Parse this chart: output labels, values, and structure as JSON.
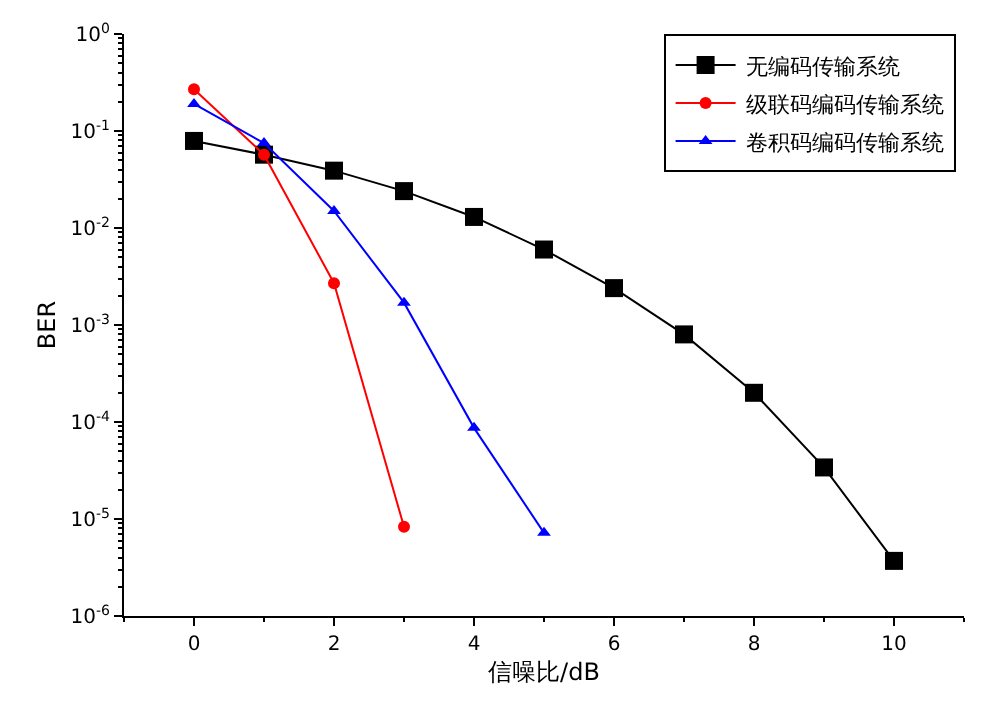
{
  "chart_data": {
    "type": "line",
    "xlabel": "信噪比/dB",
    "ylabel": "BER",
    "log": "y",
    "x": [
      0,
      1,
      2,
      3,
      4,
      5,
      6,
      7,
      8,
      9,
      10
    ],
    "xlim": [
      -1,
      11
    ],
    "xticks": [
      0,
      2,
      4,
      6,
      8,
      10
    ],
    "ylim": [
      1e-06,
      1
    ],
    "yticks": [
      {
        "value": 1,
        "label": "10$^{0}$"
      },
      {
        "value": 0.1,
        "label": "10$^{-1}$"
      },
      {
        "value": 0.01,
        "label": "10$^{-2}$"
      },
      {
        "value": 0.001,
        "label": "10$^{-3}$"
      },
      {
        "value": 0.0001,
        "label": "10$^{-4}$"
      },
      {
        "value": 1e-05,
        "label": "10$^{-5}$"
      },
      {
        "value": 1e-06,
        "label": "10$^{-6}$"
      }
    ],
    "legend": "top right",
    "series": [
      {
        "name": "无编码传输系统",
        "color": "#000000",
        "marker": "square",
        "values": [
          0.079,
          0.057,
          0.039,
          0.024,
          0.013,
          0.006,
          0.0024,
          0.0008,
          0.0002,
          3.4e-05,
          3.7e-06
        ]
      },
      {
        "name": "级联码编码传输系统",
        "color": "#ff0000",
        "marker": "circle",
        "x": [
          0,
          1,
          2,
          3
        ],
        "values": [
          0.27,
          0.057,
          0.0027,
          8.3e-06
        ]
      },
      {
        "name": "卷积码编码传输系统",
        "color": "#0000ff",
        "marker": "triangle",
        "x": [
          0,
          1,
          2,
          3,
          4,
          5
        ],
        "values": [
          0.19,
          0.075,
          0.015,
          0.0017,
          8.7e-05,
          7.2e-06
        ]
      }
    ]
  }
}
